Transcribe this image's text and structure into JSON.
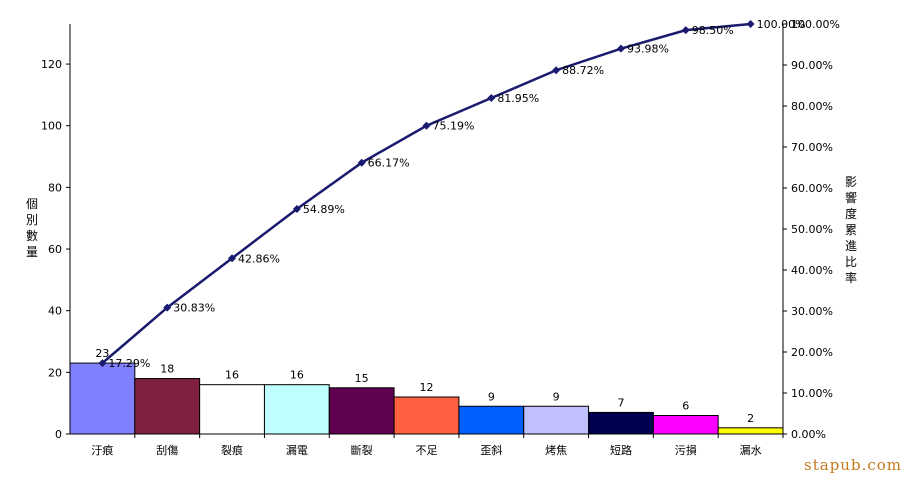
{
  "chart_data": {
    "type": "bar+line",
    "categories": [
      "汙痕",
      "刮傷",
      "裂痕",
      "漏電",
      "斷裂",
      "不足",
      "歪斜",
      "烤焦",
      "短路",
      "污損",
      "漏水"
    ],
    "bar_values": [
      23,
      18,
      16,
      16,
      15,
      12,
      9,
      9,
      7,
      6,
      2
    ],
    "cumulative_pct": [
      17.29,
      30.83,
      42.86,
      54.89,
      66.17,
      75.19,
      81.95,
      88.72,
      93.98,
      98.5,
      100.0
    ],
    "cumulative_labels": [
      "17.29%",
      "30.83%",
      "42.86%",
      "54.89%",
      "66.17%",
      "75.19%",
      "81.95%",
      "88.72%",
      "93.98%",
      "98.50%",
      "100.00%"
    ],
    "y_left": {
      "label_chars": [
        "個",
        "別",
        "數",
        "量"
      ],
      "min": 0,
      "max": 133,
      "ticks": [
        0,
        20,
        40,
        60,
        80,
        100,
        120
      ]
    },
    "y_right": {
      "label_chars": [
        "影",
        "響",
        "度",
        "累",
        "進",
        "比",
        "率"
      ],
      "min": 0,
      "max": 100,
      "ticks": [
        "0.00%",
        "10.00%",
        "20.00%",
        "30.00%",
        "40.00%",
        "50.00%",
        "60.00%",
        "70.00%",
        "80.00%",
        "90.00%",
        "100.00%"
      ]
    },
    "bar_colors": [
      "#8080ff",
      "#802040",
      "#ffffff",
      "#c0ffff",
      "#600050",
      "#ff6040",
      "#0060ff",
      "#c0c0ff",
      "#000050",
      "#ff00ff",
      "#ffff00"
    ],
    "line_color": "#1a1a6e"
  },
  "watermark": "stapub.com"
}
